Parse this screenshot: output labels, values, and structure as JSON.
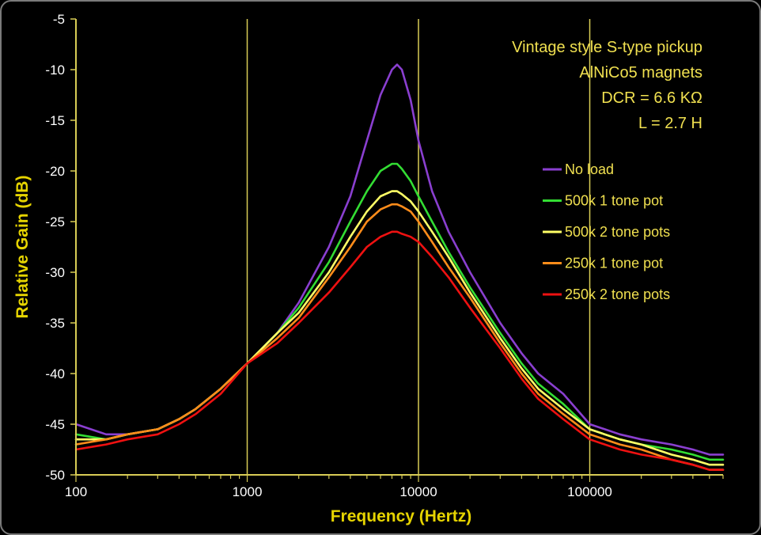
{
  "chart_data": {
    "type": "line",
    "xlabel": "Frequency (Hertz)",
    "ylabel": "Relative Gain (dB)",
    "x_scale": "log",
    "xlim": [
      100,
      600000
    ],
    "ylim": [
      -50,
      -5
    ],
    "x_ticks": [
      {
        "value": 100,
        "label": "100"
      },
      {
        "value": 1000,
        "label": "1000"
      },
      {
        "value": 10000,
        "label": "10000"
      },
      {
        "value": 100000,
        "label": "100000"
      }
    ],
    "y_ticks": [
      {
        "value": -5,
        "label": "-5"
      },
      {
        "value": -10,
        "label": "-10"
      },
      {
        "value": -15,
        "label": "-15"
      },
      {
        "value": -20,
        "label": "-20"
      },
      {
        "value": -25,
        "label": "-25"
      },
      {
        "value": -30,
        "label": "-30"
      },
      {
        "value": -35,
        "label": "-35"
      },
      {
        "value": -40,
        "label": "-40"
      },
      {
        "value": -45,
        "label": "-45"
      },
      {
        "value": -50,
        "label": "-50"
      }
    ],
    "vertical_gridlines_at": [
      1000,
      10000,
      100000
    ],
    "grid": true,
    "legend_position": "right",
    "annotations": [
      "Vintage style S-type pickup",
      "AlNiCo5 magnets",
      "DCR = 6.6 KΩ",
      "L = 2.7 H"
    ],
    "series": [
      {
        "name": "No load",
        "color": "#8a3fd0",
        "x": [
          100,
          150,
          200,
          300,
          400,
          500,
          700,
          1000,
          1500,
          2000,
          3000,
          4000,
          5000,
          6000,
          7000,
          7500,
          8000,
          9000,
          10000,
          12000,
          15000,
          20000,
          30000,
          40000,
          50000,
          70000,
          100000,
          150000,
          200000,
          300000,
          400000,
          500000,
          600000
        ],
        "y": [
          -45,
          -46,
          -46,
          -45.5,
          -44.5,
          -43.5,
          -41.5,
          -39,
          -36,
          -33,
          -27.5,
          -22.5,
          -17,
          -12.5,
          -10,
          -9.5,
          -10,
          -13,
          -17,
          -22,
          -26,
          -30,
          -35,
          -38,
          -40,
          -42,
          -45,
          -46,
          -46.5,
          -47,
          -47.5,
          -48,
          -48
        ]
      },
      {
        "name": "500k 1 tone pot",
        "color": "#33dd33",
        "x": [
          100,
          150,
          200,
          300,
          400,
          500,
          700,
          1000,
          1500,
          2000,
          3000,
          4000,
          5000,
          6000,
          7000,
          7500,
          8000,
          9000,
          10000,
          12000,
          15000,
          20000,
          30000,
          40000,
          50000,
          70000,
          100000,
          150000,
          200000,
          300000,
          400000,
          500000,
          600000
        ],
        "y": [
          -46,
          -46.5,
          -46,
          -45.5,
          -44.5,
          -43.5,
          -41.5,
          -39,
          -36,
          -33.5,
          -29,
          -25,
          -22,
          -20,
          -19.3,
          -19.3,
          -19.8,
          -21,
          -22.5,
          -25,
          -28,
          -31.5,
          -36,
          -39,
          -41,
          -43,
          -45.5,
          -46.5,
          -47,
          -47.5,
          -48,
          -48.5,
          -48.5
        ]
      },
      {
        "name": "500k 2 tone pots",
        "color": "#ffff66",
        "x": [
          100,
          150,
          200,
          300,
          400,
          500,
          700,
          1000,
          1500,
          2000,
          3000,
          4000,
          5000,
          6000,
          7000,
          7500,
          8000,
          9000,
          10000,
          12000,
          15000,
          20000,
          30000,
          40000,
          50000,
          70000,
          100000,
          150000,
          200000,
          300000,
          400000,
          500000,
          600000
        ],
        "y": [
          -46.5,
          -46.5,
          -46,
          -45.5,
          -44.5,
          -43.5,
          -41.5,
          -39,
          -36,
          -34,
          -30,
          -26.5,
          -24,
          -22.5,
          -22,
          -22,
          -22.3,
          -23,
          -24,
          -26,
          -28.5,
          -32,
          -36.5,
          -39.5,
          -41.5,
          -43.5,
          -45.5,
          -46.5,
          -47,
          -48,
          -48.5,
          -49,
          -49
        ]
      },
      {
        "name": "250k 1 tone pot",
        "color": "#ff8c1a",
        "x": [
          100,
          150,
          200,
          300,
          400,
          500,
          700,
          1000,
          1500,
          2000,
          3000,
          4000,
          5000,
          6000,
          7000,
          7500,
          8000,
          9000,
          10000,
          12000,
          15000,
          20000,
          30000,
          40000,
          50000,
          70000,
          100000,
          150000,
          200000,
          300000,
          400000,
          500000,
          600000
        ],
        "y": [
          -47,
          -46.5,
          -46,
          -45.5,
          -44.5,
          -43.5,
          -41.5,
          -39,
          -36.5,
          -34.5,
          -30.5,
          -27.5,
          -25,
          -23.8,
          -23.3,
          -23.3,
          -23.5,
          -24,
          -25,
          -27,
          -29.5,
          -32.5,
          -37,
          -40,
          -42,
          -44,
          -46,
          -47,
          -47.5,
          -48.5,
          -49,
          -49.5,
          -49.5
        ]
      },
      {
        "name": "250k 2 tone pots",
        "color": "#ee1111",
        "x": [
          100,
          150,
          200,
          300,
          400,
          500,
          700,
          1000,
          1500,
          2000,
          3000,
          4000,
          5000,
          6000,
          7000,
          7500,
          8000,
          9000,
          10000,
          12000,
          15000,
          20000,
          30000,
          40000,
          50000,
          70000,
          100000,
          150000,
          200000,
          300000,
          400000,
          500000,
          600000
        ],
        "y": [
          -47.5,
          -47,
          -46.5,
          -46,
          -45,
          -44,
          -42,
          -39,
          -37,
          -35,
          -32,
          -29.5,
          -27.5,
          -26.5,
          -26,
          -26,
          -26.2,
          -26.5,
          -27,
          -28.5,
          -30.5,
          -33.5,
          -37.5,
          -40.5,
          -42.5,
          -44.5,
          -46.5,
          -47.5,
          -48,
          -48.5,
          -49,
          -49.5,
          -49.5
        ]
      }
    ]
  }
}
